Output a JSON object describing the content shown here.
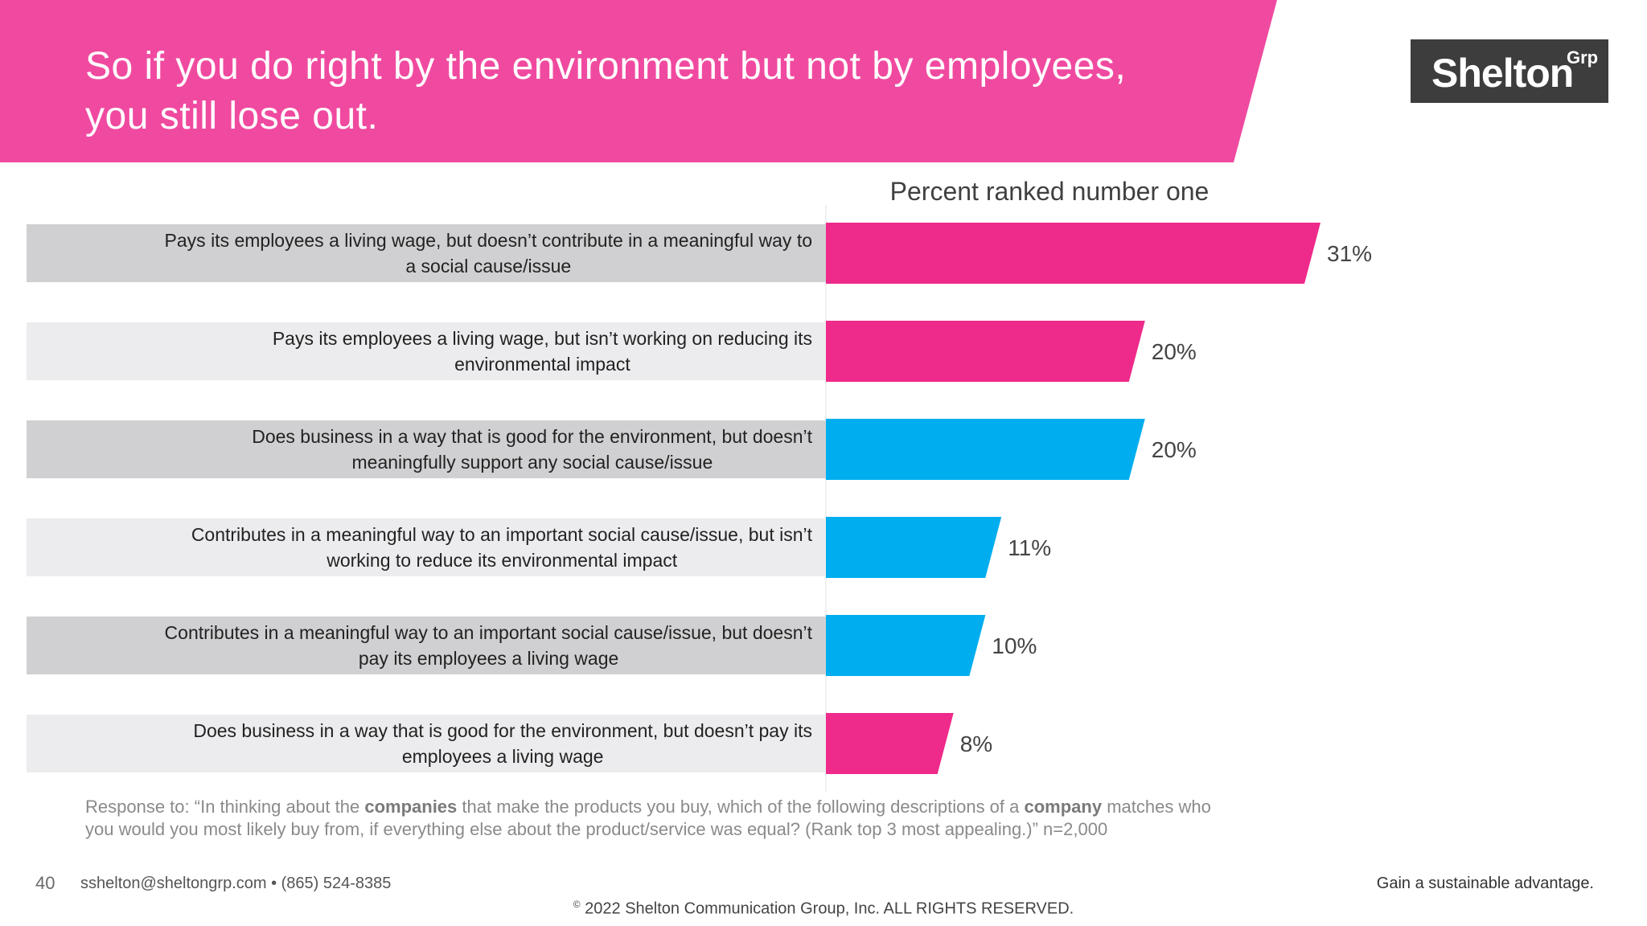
{
  "header": {
    "title_line1": "So if you do right by the environment but not by employees,",
    "title_line2": "you still lose out.",
    "band_color": "#f04aa0"
  },
  "logo": {
    "main": "Shelton",
    "superscript": "Grp"
  },
  "chart_data": {
    "type": "bar",
    "orientation": "horizontal",
    "title": "Percent ranked number one",
    "categories": [
      [
        "Pays its employees a living wage, but doesn’t contribute in a meaningful way to",
        "a social cause/issue"
      ],
      [
        "Pays its employees a living wage, but isn’t working on reducing its",
        "environmental impact"
      ],
      [
        "Does business in a way that is good for the environment, but doesn’t",
        "meaningfully support any social cause/issue"
      ],
      [
        "Contributes in a meaningful way to an important social cause/issue, but isn’t",
        "working to reduce its environmental impact"
      ],
      [
        "Contributes in a meaningful way to an important social cause/issue, but doesn’t",
        "pay its employees a living wage"
      ],
      [
        "Does business in a way that is good for the environment, but doesn’t pay its",
        "employees a living wage"
      ]
    ],
    "values": [
      31,
      20,
      20,
      11,
      10,
      8
    ],
    "value_labels": [
      "31%",
      "20%",
      "20%",
      "11%",
      "10%",
      "8%"
    ],
    "bar_colors": [
      "#ee2a8a",
      "#ee2a8a",
      "#00aeef",
      "#00aeef",
      "#00aeef",
      "#ee2a8a"
    ],
    "row_backgrounds": [
      "#d0d0d2",
      "#ececee",
      "#d0d0d2",
      "#ececee",
      "#d0d0d2",
      "#ececee"
    ],
    "xlim": [
      0,
      31
    ]
  },
  "footnote": {
    "part1": "Response to: “In thinking about the ",
    "bold1": "companies",
    "part2": " that make the products you buy, which of the following descriptions of a ",
    "bold2": "company",
    "part3": " matches who",
    "line2": "you would you most likely buy from, if everything else about the product/service was equal? (Rank top 3 most appealing.)” n=2,000"
  },
  "footer": {
    "page_number": "40",
    "contact": "sshelton@sheltongrp.com • (865) 524-8385",
    "tagline": "Gain a sustainable advantage.",
    "copyright_symbol": "©",
    "copyright": " 2022 Shelton Communication Group, Inc.  ALL RIGHTS RESERVED."
  }
}
